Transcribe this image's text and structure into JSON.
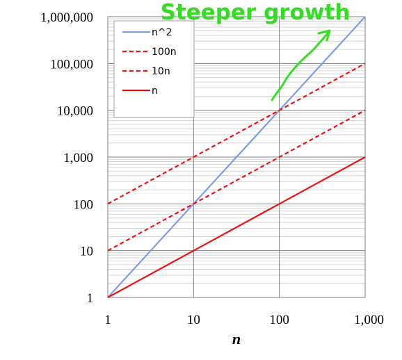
{
  "chart_data": {
    "type": "line",
    "x_scale": "log",
    "y_scale": "log",
    "xlim": [
      1,
      1000
    ],
    "ylim": [
      1,
      1000000
    ],
    "grid": true,
    "legend_position": "top-left",
    "xlabel": "n",
    "ylabel": "",
    "title": "",
    "x_ticks": [
      1,
      10,
      100,
      1000
    ],
    "x_tick_labels": [
      "1",
      "10",
      "100",
      "1,000"
    ],
    "y_ticks": [
      1,
      10,
      100,
      1000,
      10000,
      100000,
      1000000
    ],
    "y_tick_labels": [
      "1",
      "10",
      "100",
      "1,000",
      "10,000",
      "100,000",
      "1,000,000"
    ],
    "series": [
      {
        "name": "n^2",
        "color": "#7f9be8",
        "style": "solid",
        "x": [
          1,
          10,
          100,
          1000
        ],
        "y": [
          1,
          100,
          10000,
          1000000
        ]
      },
      {
        "name": "100n",
        "color": "#ee1111",
        "style": "dashed",
        "x": [
          1,
          10,
          100,
          1000
        ],
        "y": [
          100,
          1000,
          10000,
          100000
        ]
      },
      {
        "name": "10n",
        "color": "#ee1111",
        "style": "dashed",
        "x": [
          1,
          10,
          100,
          1000
        ],
        "y": [
          10,
          100,
          1000,
          10000
        ]
      },
      {
        "name": "n",
        "color": "#ee1111",
        "style": "solid",
        "x": [
          1,
          10,
          100,
          1000
        ],
        "y": [
          1,
          10,
          100,
          1000
        ]
      }
    ],
    "annotation": {
      "text": "Steeper growth",
      "color": "#33dd22"
    }
  }
}
